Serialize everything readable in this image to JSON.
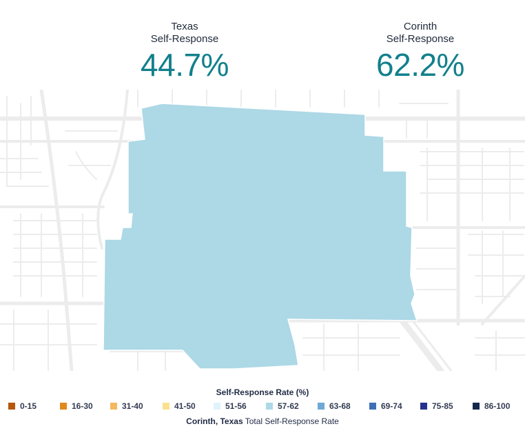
{
  "stats": {
    "texas": {
      "label_line1": "Texas",
      "label_line2": "Self-Response",
      "value": "44.7%"
    },
    "corinth": {
      "label_line1": "Corinth",
      "label_line2": "Self-Response",
      "value": "62.2%"
    }
  },
  "map": {
    "region_fill": "#add8e6",
    "region_category": "57-62"
  },
  "legend": {
    "title": "Self-Response Rate (%)",
    "items": [
      {
        "label": "0-15",
        "color": "#b5570d"
      },
      {
        "label": "16-30",
        "color": "#e08a1e"
      },
      {
        "label": "31-40",
        "color": "#f4b860"
      },
      {
        "label": "41-50",
        "color": "#fbe08f"
      },
      {
        "label": "51-56",
        "color": "#e0f3fb"
      },
      {
        "label": "57-62",
        "color": "#add8e6"
      },
      {
        "label": "63-68",
        "color": "#6fa9d4"
      },
      {
        "label": "69-74",
        "color": "#3f6fb5"
      },
      {
        "label": "75-85",
        "color": "#24328f"
      },
      {
        "label": "86-100",
        "color": "#13284a"
      }
    ]
  },
  "caption": {
    "place": "Corinth, Texas",
    "text": "Total Self-Response Rate"
  }
}
